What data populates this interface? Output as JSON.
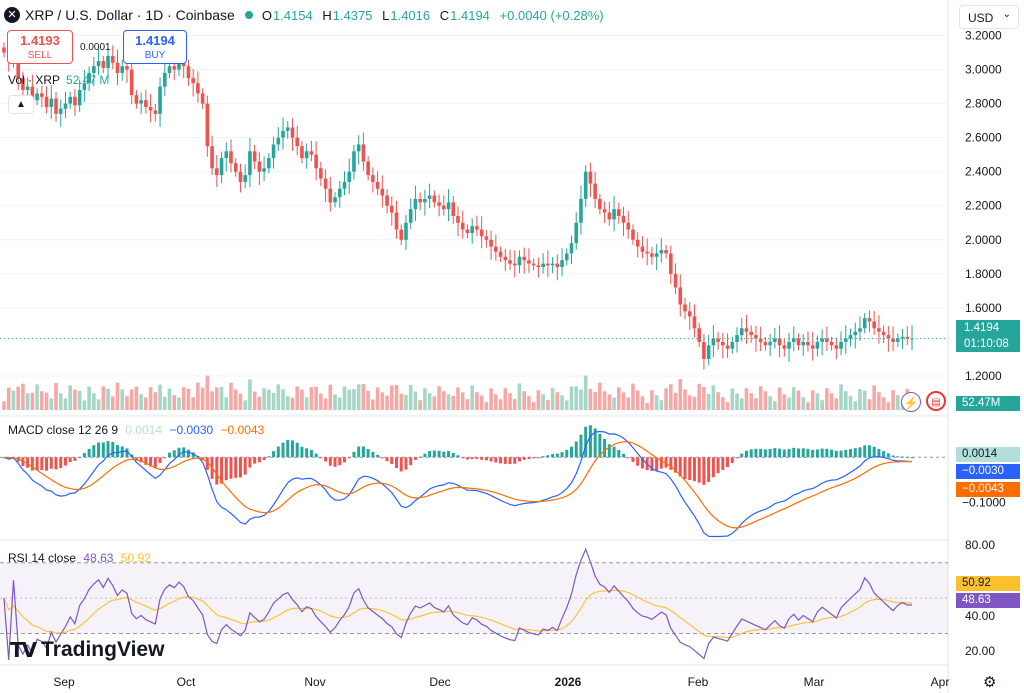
{
  "header": {
    "symbol_icon": "xrp-logo-icon",
    "title": "XRP / U.S. Dollar · 1D · Coinbase",
    "market_status_color": "#26a69a",
    "open_label": "O",
    "open": "1.4154",
    "high_label": "H",
    "high": "1.4375",
    "low_label": "L",
    "low": "1.4016",
    "close_label": "C",
    "close": "1.4194",
    "change": "+0.0040 (+0.28%)"
  },
  "trade": {
    "sell_price": "1.4193",
    "sell_label": "SELL",
    "spread": "0.0001",
    "buy_price": "1.4194",
    "buy_label": "BUY"
  },
  "currency": {
    "label": "USD"
  },
  "volume": {
    "name": "Vol · XRP",
    "value": "52.47 M",
    "badge": "52.47M"
  },
  "price_badge": {
    "price": "1.4194",
    "countdown": "01:10:08"
  },
  "macd": {
    "name": "MACD close 12 26 9",
    "hist": "0.0014",
    "macd": "−0.0030",
    "signal": "−0.0043",
    "axis_label": "−0.1000"
  },
  "rsi": {
    "name": "RSI 14 close",
    "value": "48.63",
    "ma": "50.92",
    "axis": [
      "80.00",
      "40.00",
      "20.00"
    ]
  },
  "brand": {
    "name": "TradingView"
  },
  "colors": {
    "up": "#26a69a",
    "down": "#ef5350",
    "macd_line": "#2962ff",
    "signal_line": "#ff6d00",
    "rsi_line": "#7e57c2",
    "rsi_ma": "#fbc02d"
  },
  "chart_data": {
    "type": "candlestick",
    "price_axis": [
      "3.2000",
      "3.0000",
      "2.8000",
      "2.6000",
      "2.4000",
      "2.2000",
      "2.0000",
      "1.8000",
      "1.6000",
      "1.2000"
    ],
    "x_axis": [
      "Sep",
      "Oct",
      "Nov",
      "Dec",
      "2026",
      "Feb",
      "Mar",
      "Apr"
    ],
    "ylim": [
      1.0,
      3.35
    ],
    "last_price": 1.4194,
    "candles_close": [
      3.1,
      3.05,
      3.12,
      2.95,
      2.88,
      2.9,
      2.82,
      2.86,
      2.84,
      2.78,
      2.83,
      2.74,
      2.77,
      2.8,
      2.84,
      2.79,
      2.88,
      2.92,
      2.98,
      3.02,
      3.05,
      3.01,
      3.08,
      3.04,
      2.98,
      3.02,
      3.0,
      2.85,
      2.8,
      2.82,
      2.78,
      2.76,
      2.74,
      2.9,
      2.98,
      3.02,
      3.0,
      3.05,
      3.02,
      2.95,
      2.92,
      2.86,
      2.8,
      2.55,
      2.42,
      2.38,
      2.48,
      2.52,
      2.45,
      2.4,
      2.34,
      2.38,
      2.52,
      2.46,
      2.4,
      2.42,
      2.48,
      2.56,
      2.6,
      2.64,
      2.66,
      2.6,
      2.55,
      2.48,
      2.52,
      2.5,
      2.42,
      2.36,
      2.3,
      2.22,
      2.25,
      2.3,
      2.34,
      2.4,
      2.52,
      2.56,
      2.46,
      2.38,
      2.34,
      2.3,
      2.26,
      2.2,
      2.16,
      2.06,
      2.0,
      2.1,
      2.18,
      2.24,
      2.22,
      2.24,
      2.26,
      2.22,
      2.2,
      2.18,
      2.22,
      2.14,
      2.1,
      2.06,
      2.04,
      2.08,
      2.06,
      2.02,
      2.0,
      1.96,
      1.93,
      1.9,
      1.88,
      1.86,
      1.85,
      1.9,
      1.88,
      1.86,
      1.85,
      1.84,
      1.86,
      1.85,
      1.86,
      1.84,
      1.88,
      1.92,
      1.98,
      2.1,
      2.24,
      2.4,
      2.33,
      2.24,
      2.18,
      2.16,
      2.12,
      2.18,
      2.14,
      2.1,
      2.06,
      2.0,
      1.96,
      1.93,
      1.92,
      1.9,
      1.92,
      1.94,
      1.92,
      1.8,
      1.72,
      1.62,
      1.58,
      1.55,
      1.48,
      1.4,
      1.3,
      1.38,
      1.42,
      1.4,
      1.38,
      1.36,
      1.4,
      1.44,
      1.48,
      1.46,
      1.44,
      1.42,
      1.4,
      1.38,
      1.4,
      1.42,
      1.38,
      1.36,
      1.4,
      1.42,
      1.38,
      1.4,
      1.38,
      1.36,
      1.4,
      1.42,
      1.4,
      1.38,
      1.36,
      1.4,
      1.42,
      1.44,
      1.46,
      1.48,
      1.54,
      1.52,
      1.48,
      1.46,
      1.44,
      1.42,
      1.4,
      1.42,
      1.43,
      1.42,
      1.42
    ],
    "macd_range": [
      -0.16,
      0.06
    ],
    "rsi_range": [
      15,
      80
    ],
    "rsi_bands": [
      30,
      70
    ]
  }
}
